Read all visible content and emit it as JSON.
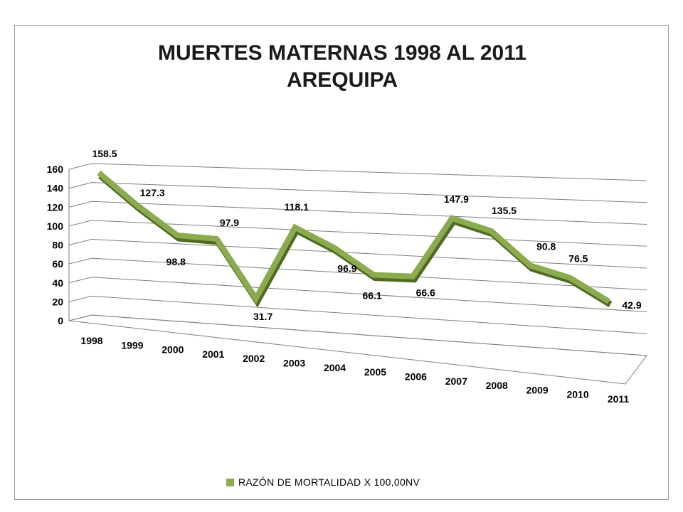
{
  "chart_data": {
    "type": "line",
    "title": [
      "MUERTES MATERNAS 1998 AL 2011",
      "AREQUIPA"
    ],
    "categories": [
      "1998",
      "1999",
      "2000",
      "2001",
      "2002",
      "2003",
      "2004",
      "2005",
      "2006",
      "2007",
      "2008",
      "2009",
      "2010",
      "2011"
    ],
    "series": [
      {
        "name": "RAZÓN DE MORTALIDAD X 100,00NV",
        "color": "#8aab4e",
        "values": [
          158.5,
          127.3,
          98.8,
          97.9,
          31.7,
          118.1,
          96.9,
          66.1,
          66.6,
          147.9,
          135.5,
          90.8,
          76.5,
          42.9
        ]
      }
    ],
    "yticks": [
      0,
      20,
      40,
      60,
      80,
      100,
      120,
      140,
      160
    ],
    "ylim": [
      0,
      160
    ],
    "grid": true,
    "legend_position": "bottom",
    "style": "3d-line"
  }
}
